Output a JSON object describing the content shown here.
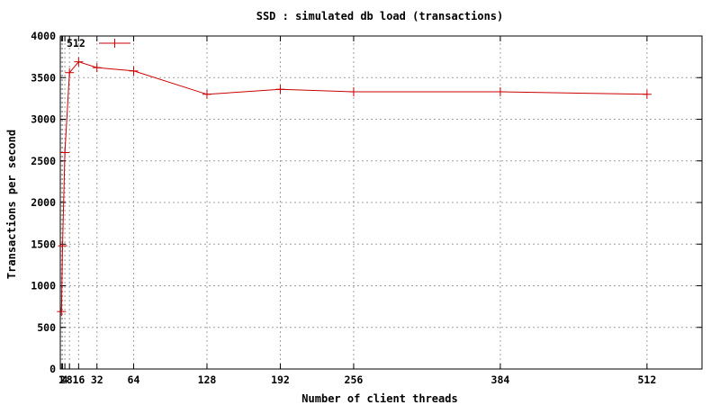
{
  "chart_data": {
    "type": "line",
    "title": "SSD : simulated db load (transactions)",
    "xlabel": "Number of client threads",
    "ylabel": "Transactions per second",
    "xlim": [
      0,
      560
    ],
    "ylim": [
      0,
      4000
    ],
    "x_ticks": [
      1,
      2,
      4,
      8,
      16,
      32,
      64,
      128,
      192,
      256,
      384,
      512
    ],
    "x_tick_labels": [
      "1",
      "2",
      "4",
      "8",
      "16",
      "32",
      "64",
      "128",
      "192",
      "256",
      "384",
      "512"
    ],
    "y_ticks": [
      0,
      500,
      1000,
      1500,
      2000,
      2500,
      3000,
      3500,
      4000
    ],
    "y_tick_labels": [
      "0",
      "500",
      "1000",
      "1500",
      "2000",
      "2500",
      "3000",
      "3500",
      "4000"
    ],
    "grid": true,
    "legend_position": "top-left",
    "series": [
      {
        "name": "512",
        "color": "#cc0000",
        "marker": "plus",
        "x": [
          1,
          2,
          4,
          8,
          16,
          32,
          64,
          128,
          192,
          256,
          384,
          512
        ],
        "y": [
          690,
          1480,
          2600,
          3560,
          3690,
          3620,
          3580,
          3300,
          3360,
          3330,
          3330,
          3300
        ]
      }
    ]
  }
}
